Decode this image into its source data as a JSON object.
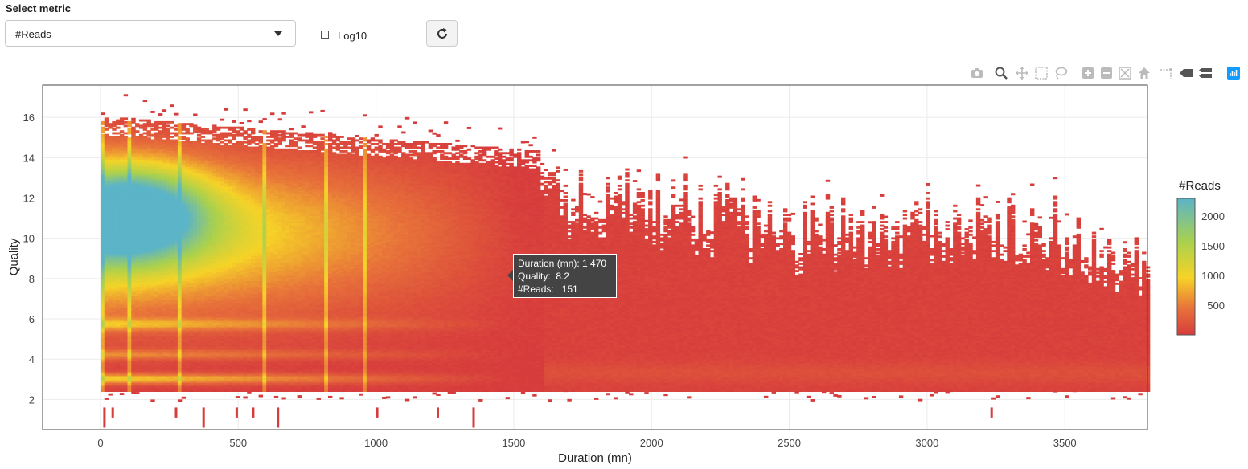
{
  "controls": {
    "select_label": "Select metric",
    "selected_metric": "#Reads",
    "log_label": "Log10",
    "log_checked": false,
    "refresh_icon": "refresh-icon"
  },
  "modebar": [
    "camera-icon",
    "zoom-icon",
    "pan-icon",
    "box-select-icon",
    "lasso-select-icon",
    "zoom-in-icon",
    "zoom-out-icon",
    "autoscale-icon",
    "reset-axes-icon",
    "spike-lines-icon",
    "hover-closest-icon",
    "hover-compare-icon",
    "plotly-logo-icon"
  ],
  "tooltip": {
    "line1": "Duration (mn): 1 470",
    "line2": "Quality:  8.2",
    "line3": "#Reads:   151"
  },
  "chart_data": {
    "type": "heatmap",
    "xlabel": "Duration (mn)",
    "ylabel": "Quality",
    "xlim": [
      -210,
      3800
    ],
    "ylim": [
      0.5,
      17.6
    ],
    "xticks": [
      0,
      500,
      1000,
      1500,
      2000,
      2500,
      3000,
      3500
    ],
    "yticks": [
      2,
      4,
      6,
      8,
      10,
      12,
      14,
      16
    ],
    "grid": true,
    "colorbar": {
      "title": "#Reads",
      "min": 0,
      "max": 2300,
      "ticks": [
        500,
        1000,
        1500,
        2000
      ],
      "colorscale": [
        "#d73c3c",
        "#e8743a",
        "#f6d327",
        "#aad14d",
        "#5bb4c8"
      ]
    },
    "density_profile": {
      "max_quality_by_duration": [
        [
          0,
          16.0
        ],
        [
          1590,
          14.3
        ],
        [
          1600,
          12.5
        ],
        [
          2200,
          11.5
        ],
        [
          2500,
          10.5
        ],
        [
          3000,
          11.0
        ],
        [
          3500,
          10.5
        ],
        [
          3800,
          8.0
        ]
      ],
      "min_quality": 2.4,
      "peak": {
        "duration": 100,
        "quality": 11.2,
        "reads": 2300
      },
      "secondary_bands_quality": [
        3,
        4.2,
        5.7
      ]
    }
  }
}
